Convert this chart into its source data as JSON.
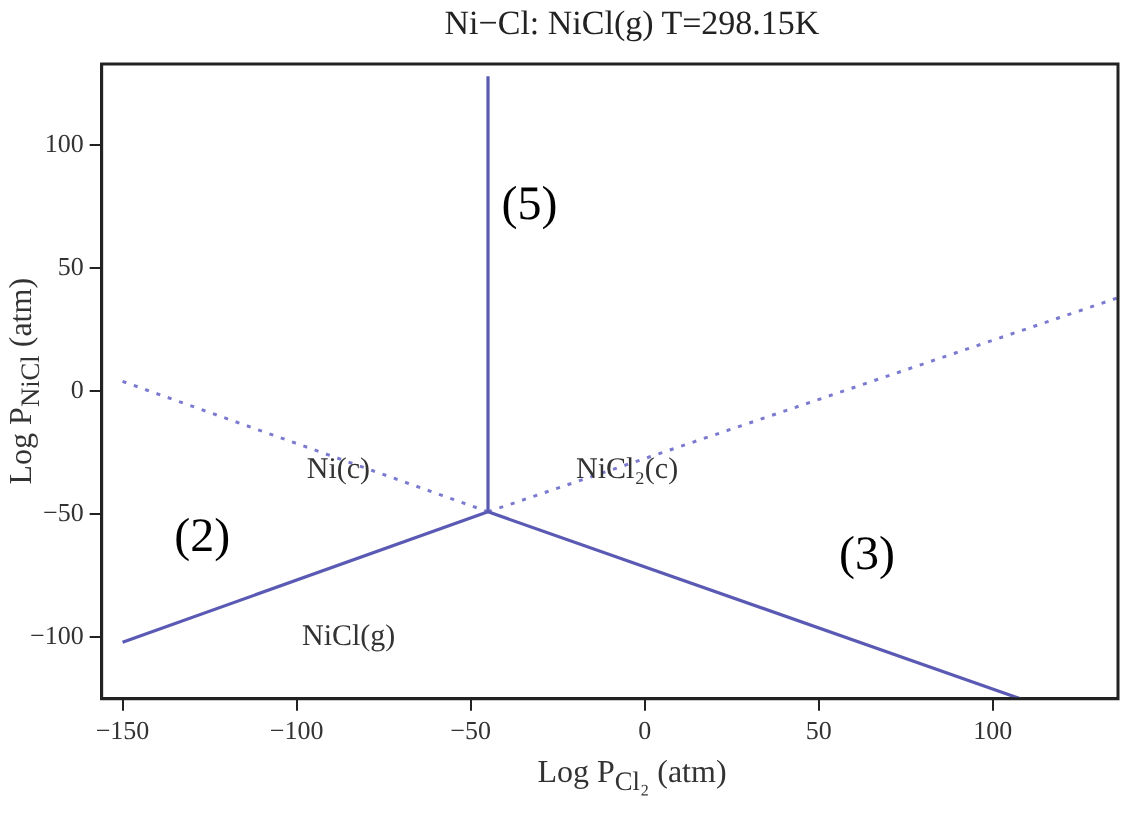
{
  "chart_data": {
    "type": "line",
    "title": "Ni−Cl: NiCl(g)  T=298.15K",
    "xlabel": "Log P$_{Cl₂}$ (atm)",
    "ylabel": "Log P$_{NiCl}$ (atm)",
    "xlim": [
      -156,
      136
    ],
    "ylim": [
      -125,
      133
    ],
    "xticks": [
      -150,
      -100,
      -50,
      0,
      50,
      100
    ],
    "yticks": [
      -100,
      -50,
      0,
      50,
      100
    ],
    "grid": false,
    "legend": false,
    "marker": "none",
    "series": [
      {
        "color": "#5a5ab4",
        "line_style": "solid",
        "x": [
          -45,
          -45
        ],
        "values": [
          -49,
          128
        ]
      },
      {
        "color": "#5a5ab4",
        "line_style": "solid",
        "x": [
          -150,
          -45
        ],
        "values": [
          -102,
          -49
        ]
      },
      {
        "color": "#5a5ab4",
        "line_style": "solid",
        "x": [
          -45,
          108
        ],
        "values": [
          -49,
          -125
        ]
      },
      {
        "color": "#7a7ad0",
        "line_style": "dotted",
        "x": [
          -150,
          -45
        ],
        "values": [
          4,
          -49
        ]
      },
      {
        "color": "#7a7ad0",
        "line_style": "dotted",
        "x": [
          -45,
          136
        ],
        "values": [
          -49,
          38
        ]
      }
    ],
    "annotations": [
      "(5)",
      "(2)",
      "(3)",
      "Ni(c)",
      "NiCl₂(c)",
      "NiCl(g)"
    ]
  }
}
